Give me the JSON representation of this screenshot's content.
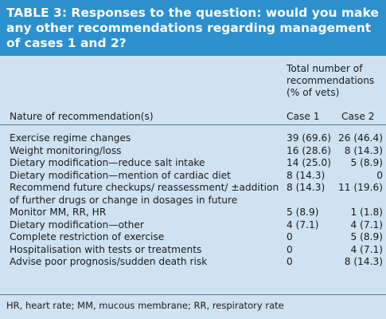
{
  "title": "TABLE 3: Responses to the question: would you make any other recommendations regarding management of cases 1 and 2?",
  "header": {
    "total_label": "Total number of recommendations (% of vets)",
    "nature_label": "Nature of recommendation(s)",
    "case1": "Case 1",
    "case2": "Case 2"
  },
  "rows": [
    {
      "label": "Exercise regime changes",
      "case1": "39 (69.6)",
      "case2": "26 (46.4)"
    },
    {
      "label": "Weight monitoring/loss",
      "case1": "16 (28.6)",
      "case2": "8 (14.3)"
    },
    {
      "label": "Dietary modification—reduce salt intake",
      "case1": "14 (25.0)",
      "case2": "5 (8.9)"
    },
    {
      "label": "Dietary modification—mention of cardiac diet",
      "case1": "8 (14.3)",
      "case2": "0"
    },
    {
      "label": "Recommend future checkups/ reassessment/ ±addition of further drugs or change in dosages in future",
      "case1": "8 (14.3)",
      "case2": "11 (19.6)"
    },
    {
      "label": "Monitor MM, RR, HR",
      "case1": "5 (8.9)",
      "case2": "1 (1.8)"
    },
    {
      "label": "Dietary modification—other",
      "case1": "4 (7.1)",
      "case2": "4 (7.1)"
    },
    {
      "label": "Complete restriction of exercise",
      "case1": "0",
      "case2": "5 (8.9)"
    },
    {
      "label": "Hospitalisation with tests or treatments",
      "case1": "0",
      "case2": "4 (7.1)"
    },
    {
      "label": "Advise poor prognosis/sudden death risk",
      "case1": "0",
      "case2": "8 (14.3)"
    }
  ],
  "footnote": "HR, heart rate; MM, mucous membrane; RR, respiratory rate",
  "colors": {
    "title_bg": "#2c8fce",
    "body_bg": "#cfe2f2",
    "rule": "#5a7d98"
  }
}
